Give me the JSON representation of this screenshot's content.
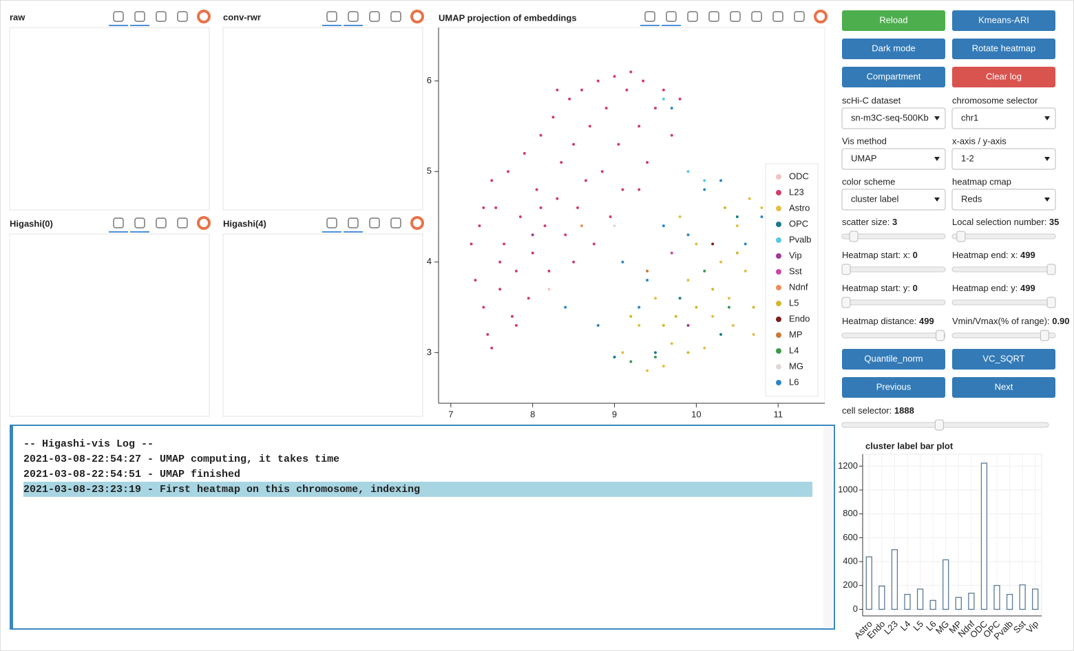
{
  "panels": [
    {
      "title": "raw"
    },
    {
      "title": "conv-rwr"
    },
    {
      "title": "Higashi(0)"
    },
    {
      "title": "Higashi(4)"
    }
  ],
  "buttons": [
    {
      "text": "Reload",
      "color": "#4cae4c"
    },
    {
      "text": "Kmeans-ARI",
      "color": "#337ab7"
    },
    {
      "text": "Dark mode",
      "color": "#337ab7"
    },
    {
      "text": "Rotate heatmap",
      "color": "#337ab7"
    },
    {
      "text": "Compartment",
      "color": "#337ab7"
    },
    {
      "text": "Clear log",
      "color": "#d9534f"
    },
    {
      "text": "Quantile_norm",
      "color": "#337ab7"
    },
    {
      "text": "VC_SQRT",
      "color": "#337ab7"
    },
    {
      "text": "Previous",
      "color": "#337ab7"
    },
    {
      "text": "Next",
      "color": "#337ab7"
    }
  ],
  "selects": [
    {
      "label": "scHi-C dataset",
      "value": "sn-m3C-seq-500Kb"
    },
    {
      "label": "chromosome selector",
      "value": "chr1"
    },
    {
      "label": "Vis method",
      "value": "UMAP"
    },
    {
      "label": "x-axis / y-axis",
      "value": "1-2"
    },
    {
      "label": "color scheme",
      "value": "cluster label"
    },
    {
      "label": "heatmap cmap",
      "value": "Reds"
    }
  ],
  "sliders": [
    {
      "label": "scatter size: ",
      "value": "3"
    },
    {
      "label": "Local selection number: ",
      "value": "35"
    },
    {
      "label": "Heatmap start: x: ",
      "value": "0"
    },
    {
      "label": "Heatmap end: x: ",
      "value": "499"
    },
    {
      "label": "Heatmap start: y: ",
      "value": "0"
    },
    {
      "label": "Heatmap end: y: ",
      "value": "499"
    },
    {
      "label": "Heatmap distance: ",
      "value": "499"
    },
    {
      "label": "Vmin/Vmax(% of range): ",
      "value": "0.90"
    }
  ],
  "cell_selector": {
    "label": "cell selector: ",
    "value": "1888"
  },
  "log": {
    "lines": [
      "-- Higashi-vis Log --",
      "2021-03-08-22:54:27 - UMAP computing, it takes time",
      "2021-03-08-22:54:51 - UMAP finished",
      "2021-03-08-23:23:19 - First heatmap on this chromosome, indexing"
    ],
    "highlighted": 3
  },
  "chart_data": [
    {
      "type": "scatter",
      "title": "UMAP projection of embeddings",
      "xlim": [
        6.85,
        11.57
      ],
      "ylim": [
        2.44,
        6.59
      ],
      "xticks": [
        7,
        8,
        9,
        10,
        11
      ],
      "yticks": [
        3,
        4,
        5,
        6
      ],
      "legend": "right",
      "series": [
        {
          "name": "ODC",
          "color": "#f2c4c0",
          "x": [
            8.2
          ],
          "y": [
            3.7
          ]
        },
        {
          "name": "L23",
          "color": "#cf3f68",
          "x": [
            7.25,
            7.3,
            7.35,
            7.4,
            7.45,
            7.5,
            7.5,
            7.55,
            7.6,
            7.65,
            7.7,
            7.75,
            7.8,
            7.85,
            7.9,
            7.95,
            8.0,
            8.05,
            8.1,
            8.15,
            8.2,
            8.25,
            8.3,
            8.35,
            8.4,
            8.45,
            8.5,
            8.55,
            8.6,
            8.65,
            8.7,
            8.75,
            8.8,
            8.85,
            8.9,
            8.95,
            9.0,
            9.05,
            9.1,
            9.15,
            9.2,
            9.3,
            9.35,
            9.4,
            9.5,
            9.6,
            9.7,
            9.8,
            7.6,
            7.8,
            8.1,
            8.5,
            7.4,
            8.3,
            9.3
          ],
          "y": [
            4.2,
            3.8,
            4.4,
            3.5,
            3.2,
            3.05,
            4.9,
            4.6,
            3.7,
            4.2,
            5.0,
            3.4,
            3.9,
            4.5,
            5.2,
            3.6,
            4.1,
            4.8,
            5.4,
            4.4,
            3.9,
            5.6,
            4.7,
            5.1,
            4.3,
            5.8,
            5.3,
            4.6,
            5.9,
            4.9,
            5.5,
            4.2,
            6.0,
            5.0,
            5.7,
            4.5,
            6.05,
            5.3,
            4.8,
            5.9,
            6.1,
            5.5,
            6.0,
            5.1,
            5.7,
            5.9,
            5.4,
            5.8,
            4.0,
            3.3,
            4.6,
            4.0,
            4.6,
            5.9,
            4.8
          ]
        },
        {
          "name": "Astro",
          "color": "#e2bf45",
          "x": [
            9.1,
            9.3,
            9.5,
            9.7,
            9.9,
            10.0,
            10.2,
            10.3,
            10.4,
            10.5,
            10.6,
            10.7,
            10.8,
            9.6,
            10.1,
            10.45,
            9.8,
            10.65,
            9.4,
            10.9
          ],
          "y": [
            3.0,
            3.3,
            3.6,
            3.1,
            3.8,
            4.2,
            3.4,
            4.0,
            3.6,
            4.4,
            3.9,
            3.2,
            4.6,
            2.85,
            3.05,
            3.3,
            4.5,
            4.7,
            2.8,
            2.75
          ]
        },
        {
          "name": "OPC",
          "color": "#1c7a8a",
          "x": [
            9.0,
            9.8,
            10.3,
            10.5,
            9.5
          ],
          "y": [
            2.95,
            3.6,
            3.2,
            4.5,
            3.0
          ]
        },
        {
          "name": "Pvalb",
          "color": "#5bc6e6",
          "x": [
            9.6,
            9.9,
            10.1
          ],
          "y": [
            5.8,
            5.0,
            4.9
          ]
        },
        {
          "name": "Vip",
          "color": "#a03a98",
          "x": [
            8.0,
            9.9
          ],
          "y": [
            4.3,
            3.3
          ]
        },
        {
          "name": "Sst",
          "color": "#c64aa6",
          "x": [
            9.7
          ],
          "y": [
            4.1
          ]
        },
        {
          "name": "Ndnf",
          "color": "#ee8e5b",
          "x": [
            8.6
          ],
          "y": [
            4.4
          ]
        },
        {
          "name": "L5",
          "color": "#d2b62c",
          "x": [
            9.2,
            9.6,
            9.9,
            10.2,
            10.5,
            10.7,
            10.0,
            9.75,
            10.35
          ],
          "y": [
            3.4,
            3.3,
            3.0,
            3.7,
            4.1,
            3.5,
            3.5,
            3.4,
            4.6
          ]
        },
        {
          "name": "Endo",
          "color": "#7a1f1f",
          "x": [
            10.2
          ],
          "y": [
            4.2
          ]
        },
        {
          "name": "MP",
          "color": "#c97a3a",
          "x": [
            9.4
          ],
          "y": [
            3.9
          ]
        },
        {
          "name": "L4",
          "color": "#3e9a4a",
          "x": [
            9.5,
            9.2,
            10.1,
            10.4
          ],
          "y": [
            2.95,
            2.9,
            3.9,
            3.5
          ]
        },
        {
          "name": "MG",
          "color": "#e6d6d6",
          "x": [
            9.0
          ],
          "y": [
            4.4
          ]
        },
        {
          "name": "L6",
          "color": "#2f86c8",
          "x": [
            8.4,
            8.8,
            9.1,
            9.4,
            9.6,
            9.7,
            9.9,
            10.1,
            10.3,
            10.6,
            10.8,
            9.3
          ],
          "y": [
            3.5,
            3.3,
            4.0,
            3.8,
            4.4,
            5.7,
            4.3,
            4.8,
            4.9,
            4.2,
            4.5,
            3.5
          ]
        }
      ]
    },
    {
      "type": "bar",
      "title": "cluster label bar plot",
      "color": "#5a7896",
      "grid": true,
      "categories": [
        "Astro",
        "Endo",
        "L23",
        "L4",
        "L5",
        "L6",
        "MG",
        "MP",
        "Ndnf",
        "ODC",
        "OPC",
        "Pvalb",
        "Sst",
        "Vip"
      ],
      "values": [
        440,
        195,
        500,
        125,
        170,
        75,
        415,
        100,
        135,
        1225,
        200,
        125,
        205,
        170
      ],
      "ylim": [
        -55,
        1300
      ],
      "yticks": [
        0,
        200,
        400,
        600,
        800,
        1000,
        1200
      ]
    }
  ]
}
